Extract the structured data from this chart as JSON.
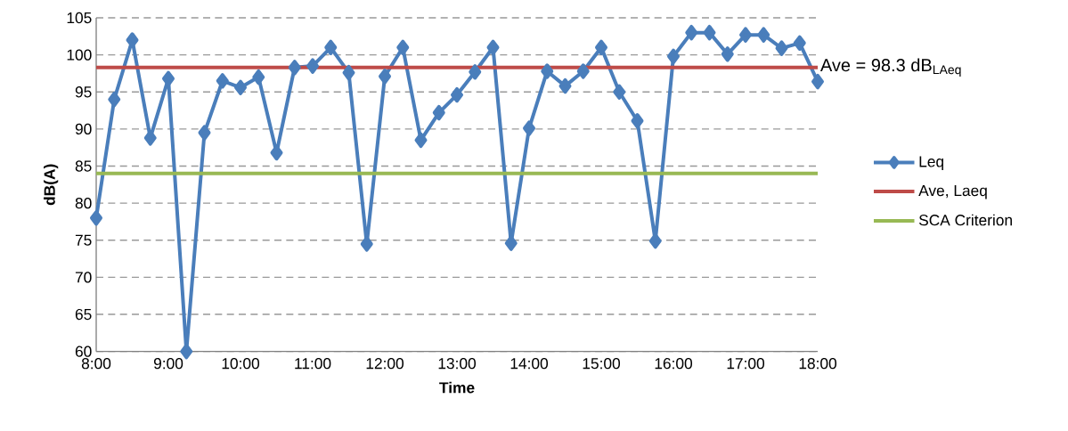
{
  "chart_data": {
    "type": "line",
    "xlabel": "Time",
    "ylabel": "dB(A)",
    "x": [
      8,
      8.25,
      8.5,
      8.75,
      9,
      9.25,
      9.5,
      9.75,
      10,
      10.25,
      10.5,
      10.75,
      11,
      11.25,
      11.5,
      11.75,
      12,
      12.25,
      12.5,
      12.75,
      13,
      13.25,
      13.5,
      13.75,
      14,
      14.25,
      14.5,
      14.75,
      15,
      15.25,
      15.5,
      15.75,
      16,
      16.25,
      16.5,
      16.75,
      17,
      17.25,
      17.5,
      17.75,
      18
    ],
    "series": [
      {
        "name": "Leq",
        "color": "#4a7ebb",
        "values": [
          78,
          94,
          102,
          88.8,
          96.8,
          60,
          89.5,
          96.5,
          95.6,
          97,
          86.8,
          98.3,
          98.5,
          101,
          97.6,
          74.5,
          97.1,
          101,
          88.5,
          92.2,
          94.6,
          97.7,
          101,
          74.6,
          90.1,
          97.8,
          95.8,
          97.8,
          101,
          95,
          91.1,
          74.9,
          99.8,
          103,
          103,
          100.1,
          102.7,
          102.7,
          100.9,
          101.6,
          96.4
        ]
      }
    ],
    "ref_lines": [
      {
        "axis": "y",
        "value": 98.3,
        "label": "Ave, Laeq",
        "color": "#be4b48"
      },
      {
        "axis": "y",
        "value": 84,
        "label": "SCA Criterion",
        "color": "#98b954"
      }
    ],
    "marker": "diamond",
    "annotations": [
      {
        "text": "Ave = 98.3 dB$_{LAeq}$",
        "x": 18,
        "y": 98.3
      }
    ],
    "xlim": [
      8,
      18
    ],
    "xticks": [
      {
        "value": 8,
        "label": "8:00"
      },
      {
        "value": 9,
        "label": "9:00"
      },
      {
        "value": 10,
        "label": "10:00"
      },
      {
        "value": 11,
        "label": "11:00"
      },
      {
        "value": 12,
        "label": "12:00"
      },
      {
        "value": 13,
        "label": "13:00"
      },
      {
        "value": 14,
        "label": "14:00"
      },
      {
        "value": 15,
        "label": "15:00"
      },
      {
        "value": 16,
        "label": "16:00"
      },
      {
        "value": 17,
        "label": "17:00"
      },
      {
        "value": 18,
        "label": "18:00"
      }
    ],
    "ylim": [
      60,
      105
    ],
    "yticks": [
      60,
      65,
      70,
      75,
      80,
      85,
      90,
      95,
      100,
      105
    ],
    "grid": "y",
    "legend": "right",
    "line_style": "solid"
  }
}
